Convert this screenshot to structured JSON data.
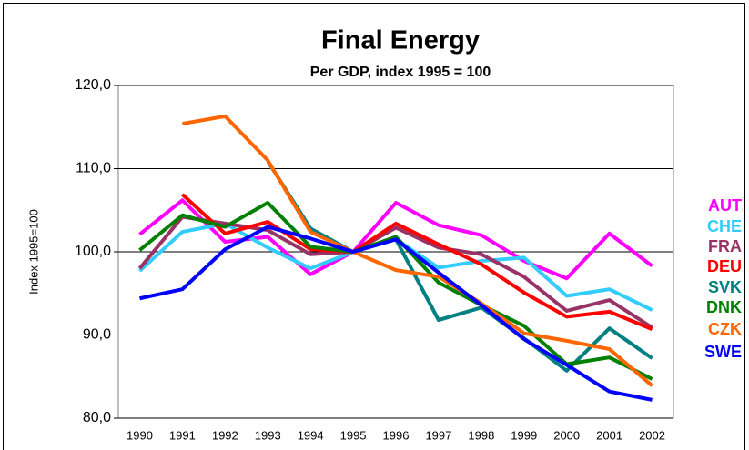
{
  "chart_data": {
    "type": "line",
    "title": "Final Energy",
    "subtitle": "Per GDP, index 1995 = 100",
    "y_label": "Index 1995=100",
    "categories": [
      "1990",
      "1991",
      "1992",
      "1993",
      "1994",
      "1995",
      "1996",
      "1997",
      "1998",
      "1999",
      "2000",
      "2001",
      "2002"
    ],
    "ylim": [
      80,
      120
    ],
    "yticks": [
      {
        "value": 80,
        "label": "80,0"
      },
      {
        "value": 90,
        "label": "90,0"
      },
      {
        "value": 100,
        "label": "100,0"
      },
      {
        "value": 110,
        "label": "110,0"
      },
      {
        "value": 120,
        "label": "120,0"
      }
    ],
    "grid": true,
    "series": [
      {
        "name": "AUT",
        "color": "#ff00ff",
        "values": [
          102.1,
          106.2,
          101.2,
          101.8,
          97.3,
          100,
          105.9,
          103.2,
          102.0,
          98.9,
          96.8,
          102.2,
          98.3
        ]
      },
      {
        "name": "CHE",
        "color": "#33ccff",
        "values": [
          97.7,
          102.4,
          103.4,
          100.5,
          98.0,
          100,
          101.5,
          98.1,
          98.9,
          99.3,
          94.7,
          95.5,
          93.0
        ]
      },
      {
        "name": "FRA",
        "color": "#993366",
        "values": [
          98.0,
          104.2,
          103.4,
          102.6,
          99.7,
          100,
          102.9,
          100.5,
          99.7,
          97.0,
          92.9,
          94.2,
          90.9
        ]
      },
      {
        "name": "DEU",
        "color": "#ff0000",
        "values": [
          null,
          106.9,
          102.2,
          103.6,
          100.3,
          100,
          103.4,
          100.9,
          98.5,
          95.1,
          92.2,
          92.8,
          90.7
        ]
      },
      {
        "name": "SVK",
        "color": "#008080",
        "values": [
          null,
          null,
          null,
          110.9,
          102.8,
          100,
          101.5,
          91.8,
          93.3,
          89.6,
          85.7,
          90.8,
          87.2
        ]
      },
      {
        "name": "DNK",
        "color": "#008000",
        "values": [
          100.2,
          104.4,
          103.0,
          105.9,
          100.6,
          100,
          101.8,
          96.3,
          93.6,
          91.1,
          86.5,
          87.3,
          84.7
        ]
      },
      {
        "name": "CZK",
        "color": "#ff6600",
        "values": [
          null,
          115.4,
          116.3,
          111.0,
          102.4,
          100,
          97.8,
          97.0,
          93.8,
          90.2,
          89.3,
          88.3,
          83.9
        ]
      },
      {
        "name": "SWE",
        "color": "#0000ff",
        "values": [
          94.4,
          95.5,
          100.3,
          103.0,
          101.6,
          100,
          101.5,
          97.5,
          93.6,
          89.5,
          86.4,
          83.2,
          82.2
        ]
      }
    ]
  }
}
